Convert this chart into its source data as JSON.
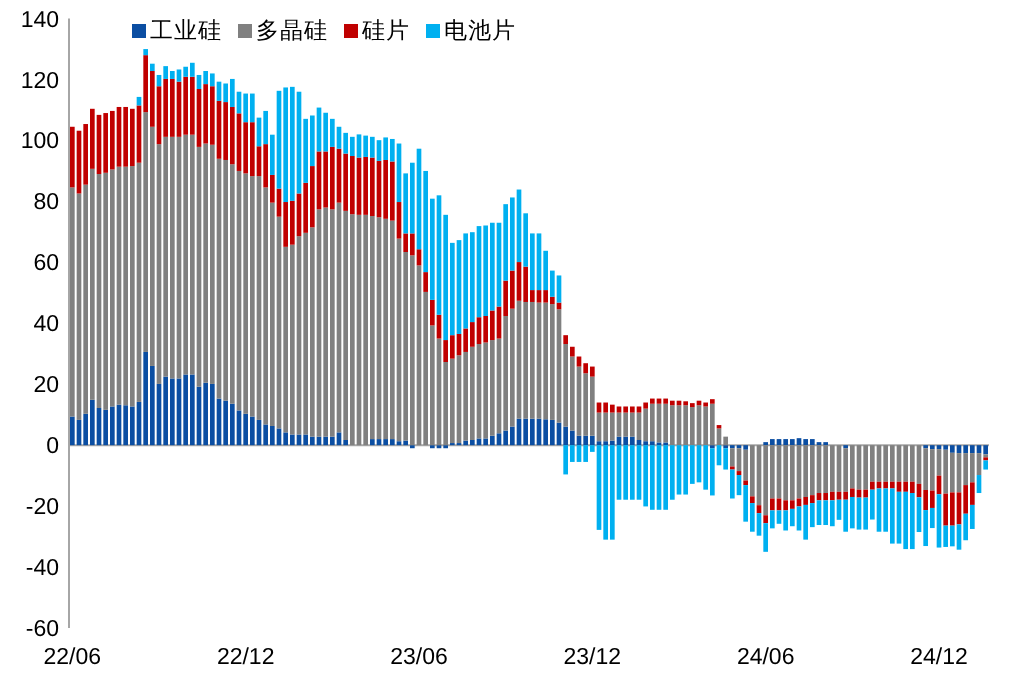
{
  "chart_data": {
    "type": "bar",
    "stacked": true,
    "legend": "top left",
    "categories": [
      "22/06",
      null,
      null,
      null,
      null,
      null,
      null,
      null,
      null,
      null,
      null,
      null,
      null,
      null,
      null,
      null,
      null,
      null,
      null,
      null,
      null,
      null,
      null,
      null,
      null,
      null,
      "22/12",
      null,
      null,
      null,
      null,
      null,
      null,
      null,
      null,
      null,
      null,
      null,
      null,
      null,
      null,
      null,
      null,
      null,
      null,
      null,
      null,
      null,
      null,
      null,
      null,
      null,
      "23/06",
      null,
      null,
      null,
      null,
      null,
      null,
      null,
      null,
      null,
      null,
      null,
      null,
      null,
      null,
      null,
      null,
      null,
      null,
      null,
      null,
      null,
      null,
      null,
      null,
      null,
      "23/12",
      null,
      null,
      null,
      null,
      null,
      null,
      null,
      null,
      null,
      null,
      null,
      null,
      null,
      null,
      null,
      null,
      null,
      null,
      null,
      null,
      null,
      null,
      null,
      null,
      null,
      "24/06",
      null,
      null,
      null,
      null,
      null,
      null,
      null,
      null,
      null,
      null,
      null,
      null,
      null,
      null,
      null,
      null,
      null,
      null,
      null,
      null,
      null,
      null,
      null,
      null,
      null,
      "24/12",
      null,
      null,
      null,
      null,
      null,
      null,
      null
    ],
    "ylim": [
      -60,
      140
    ],
    "yticks": [
      -60,
      -40,
      -20,
      0,
      20,
      40,
      60,
      80,
      100,
      120,
      140
    ],
    "series": [
      {
        "name": "工业硅",
        "color": "#0b4ea2",
        "values": [
          9.4,
          8.3,
          10.3,
          14.9,
          12.2,
          11.6,
          12.7,
          13.3,
          13.1,
          12.7,
          14.2,
          30.6,
          26,
          20.1,
          22.5,
          21.9,
          21.9,
          23.2,
          23.2,
          19.2,
          20.5,
          20.1,
          15.3,
          14.6,
          13.6,
          11.4,
          10.3,
          9.4,
          8.3,
          6.8,
          6.3,
          5.5,
          4.2,
          3.5,
          3.5,
          3.5,
          2.8,
          2.8,
          2.8,
          2.8,
          4.2,
          1.7,
          0,
          0,
          0,
          2,
          2,
          2,
          2,
          1.3,
          1.5,
          -1,
          0,
          0,
          -1,
          -1,
          -1,
          0.7,
          0.7,
          1.5,
          1.7,
          2.2,
          2.2,
          3.1,
          3.9,
          4.8,
          6.1,
          8.7,
          8.7,
          8.7,
          8.7,
          8.5,
          8.3,
          7.4,
          6.1,
          4.8,
          3.1,
          3.1,
          3.1,
          1.3,
          1.3,
          1.5,
          2.8,
          2.8,
          2.8,
          1.7,
          1.3,
          1.3,
          0.9,
          0.9,
          0,
          0,
          0,
          0,
          0,
          0,
          -1,
          0,
          -1,
          -1,
          -1,
          -1.5,
          0,
          0,
          1,
          2,
          2,
          2,
          2,
          2.3,
          2,
          2,
          1,
          1,
          0,
          0,
          -1,
          0,
          0,
          0,
          0,
          0,
          0,
          0,
          0,
          0,
          0,
          0,
          -1,
          -1.3,
          -1.3,
          -1.5,
          -2.5,
          -2.6,
          -2.6,
          -2.6,
          -2.6,
          -3
        ]
      },
      {
        "name": "多晶硅",
        "color": "#808080",
        "values": [
          75.2,
          74.3,
          75.2,
          75.8,
          76.8,
          77.8,
          77.8,
          78.1,
          78.3,
          78.9,
          78.5,
          78.7,
          78.5,
          78.7,
          78.7,
          79.3,
          79.3,
          78.7,
          78.7,
          78.7,
          78.5,
          78.5,
          78.7,
          79,
          78.6,
          78.6,
          78.9,
          78.9,
          80,
          77.8,
          73.3,
          69.5,
          60.9,
          62.3,
          65.1,
          66.2,
          68.7,
          74.6,
          75.2,
          74.6,
          75.4,
          75.2,
          75.8,
          75.6,
          75.6,
          73.2,
          72.8,
          72.3,
          71.7,
          66.5,
          61.9,
          62.3,
          59,
          50.3,
          39.3,
          35,
          27.3,
          27.7,
          28.8,
          29.1,
          30.6,
          31,
          31.5,
          31.4,
          31.1,
          37.6,
          38.7,
          38.7,
          38.3,
          38.3,
          38.1,
          38.3,
          38,
          37.2,
          27.1,
          24.3,
          22.7,
          20.5,
          19.4,
          9.4,
          9.4,
          9.2,
          7.9,
          7.9,
          7.9,
          9,
          10.7,
          12.3,
          12.7,
          12.7,
          13.1,
          13.1,
          13.1,
          12.5,
          13.1,
          12.7,
          13.6,
          5.5,
          2.8,
          -6,
          -7.5,
          -10.1,
          -16.8,
          -19.7,
          -23,
          -17.5,
          -17.5,
          -18.1,
          -18.1,
          -17.5,
          -17,
          -16.4,
          -15.7,
          -15.7,
          -15.3,
          -15.3,
          -14.3,
          -14.2,
          -14.6,
          -14.6,
          -12,
          -12,
          -12,
          -12,
          -12,
          -12,
          -12,
          -12.7,
          -13.7,
          -13.6,
          -8.7,
          -14.4,
          -13,
          -12.9,
          -10.5,
          -9.6,
          -7.2,
          -1
        ]
      },
      {
        "name": "硅片",
        "color": "#c00000",
        "values": [
          19.9,
          20.6,
          19.9,
          19.7,
          19.4,
          19.6,
          19.2,
          19.6,
          19.6,
          18.8,
          18.8,
          18.7,
          18.3,
          19,
          19,
          19,
          18.1,
          19,
          19,
          19,
          19.5,
          19.2,
          19,
          19,
          18.8,
          18.9,
          16.8,
          17.7,
          9.8,
          14.2,
          9.1,
          9.2,
          14.7,
          14.4,
          14,
          16.4,
          20.1,
          19,
          18.4,
          20.5,
          17.7,
          18.8,
          19.1,
          18.8,
          19,
          19.2,
          18.5,
          19.3,
          19.4,
          12,
          6.1,
          7.2,
          5.3,
          6.5,
          8.4,
          7.8,
          7.2,
          7.7,
          7,
          7.7,
          8.1,
          8.8,
          8.7,
          9.7,
          10.5,
          11.6,
          12.5,
          12.7,
          11.6,
          3.9,
          4.1,
          4.1,
          2.4,
          2.2,
          2.9,
          3.2,
          3.3,
          3.3,
          3.3,
          3.3,
          3.3,
          2.6,
          2,
          2,
          2,
          2,
          2,
          1.7,
          1.7,
          1.7,
          1.5,
          1.5,
          1.3,
          1.3,
          1.5,
          1.3,
          1.5,
          1.1,
          0,
          -1,
          -1.3,
          -1.5,
          -2.2,
          -2.6,
          -2.6,
          -3.9,
          -3.9,
          -3.3,
          -2.8,
          -2.6,
          -2.6,
          -2.6,
          -2.4,
          -2.4,
          -2.8,
          -2.6,
          -2.6,
          -2.8,
          -2.6,
          -2.6,
          -2.6,
          -2.2,
          -2.2,
          -2.2,
          -3.3,
          -3.3,
          -3.7,
          -4.4,
          -6.6,
          -5.7,
          -6.1,
          -10.5,
          -10.9,
          -10.5,
          -9.4,
          -7.4,
          0,
          -1
        ]
      },
      {
        "name": "电池片",
        "color": "#00b0f0",
        "values": [
          0,
          0,
          0,
          0,
          0,
          0,
          0,
          0,
          0,
          0,
          2.8,
          2,
          2.4,
          3.7,
          4.2,
          2.6,
          4,
          3.3,
          4.6,
          4.6,
          4.3,
          4.2,
          6.3,
          6.1,
          9.2,
          7.1,
          9.4,
          9.4,
          9.4,
          10.9,
          13.2,
          32.1,
          37.6,
          37.4,
          33.4,
          21,
          16.6,
          14.4,
          12.7,
          9.2,
          7.2,
          6.8,
          6.3,
          7.6,
          7,
          6.8,
          6.8,
          7.4,
          7.4,
          19.2,
          19.7,
          23.2,
          33,
          33.2,
          33.2,
          39.2,
          41.1,
          30.3,
          30.8,
          31.2,
          29.5,
          29.9,
          29.7,
          28.8,
          27.5,
          25.1,
          24,
          23.8,
          17.5,
          18.6,
          18.6,
          12.9,
          8.6,
          8.9,
          -9.6,
          -5.5,
          -5.5,
          -5.5,
          -2.2,
          -27.8,
          -31,
          -31,
          -17.9,
          -17.9,
          -17.9,
          -17.9,
          -20.1,
          -21.2,
          -21.2,
          -21.2,
          -17.9,
          -16.2,
          -16.2,
          -12.7,
          -12.2,
          -14.6,
          -15.5,
          -6.6,
          -7,
          -9.5,
          -6.6,
          -12,
          -9.4,
          -7.4,
          -9.4,
          -5.9,
          -4.4,
          -6.6,
          -5.7,
          -7.9,
          -11.4,
          -7.9,
          -8.1,
          -8.1,
          -8.5,
          -6.6,
          -10.5,
          -10.3,
          -10.5,
          -10.5,
          -9.8,
          -14.2,
          -14.2,
          -18.1,
          -17,
          -18.8,
          -18.4,
          -11.4,
          -11.8,
          -6.6,
          -17.5,
          -7,
          -6.8,
          -8.3,
          -8.7,
          -7.9,
          -5.9,
          -3
        ]
      }
    ]
  }
}
